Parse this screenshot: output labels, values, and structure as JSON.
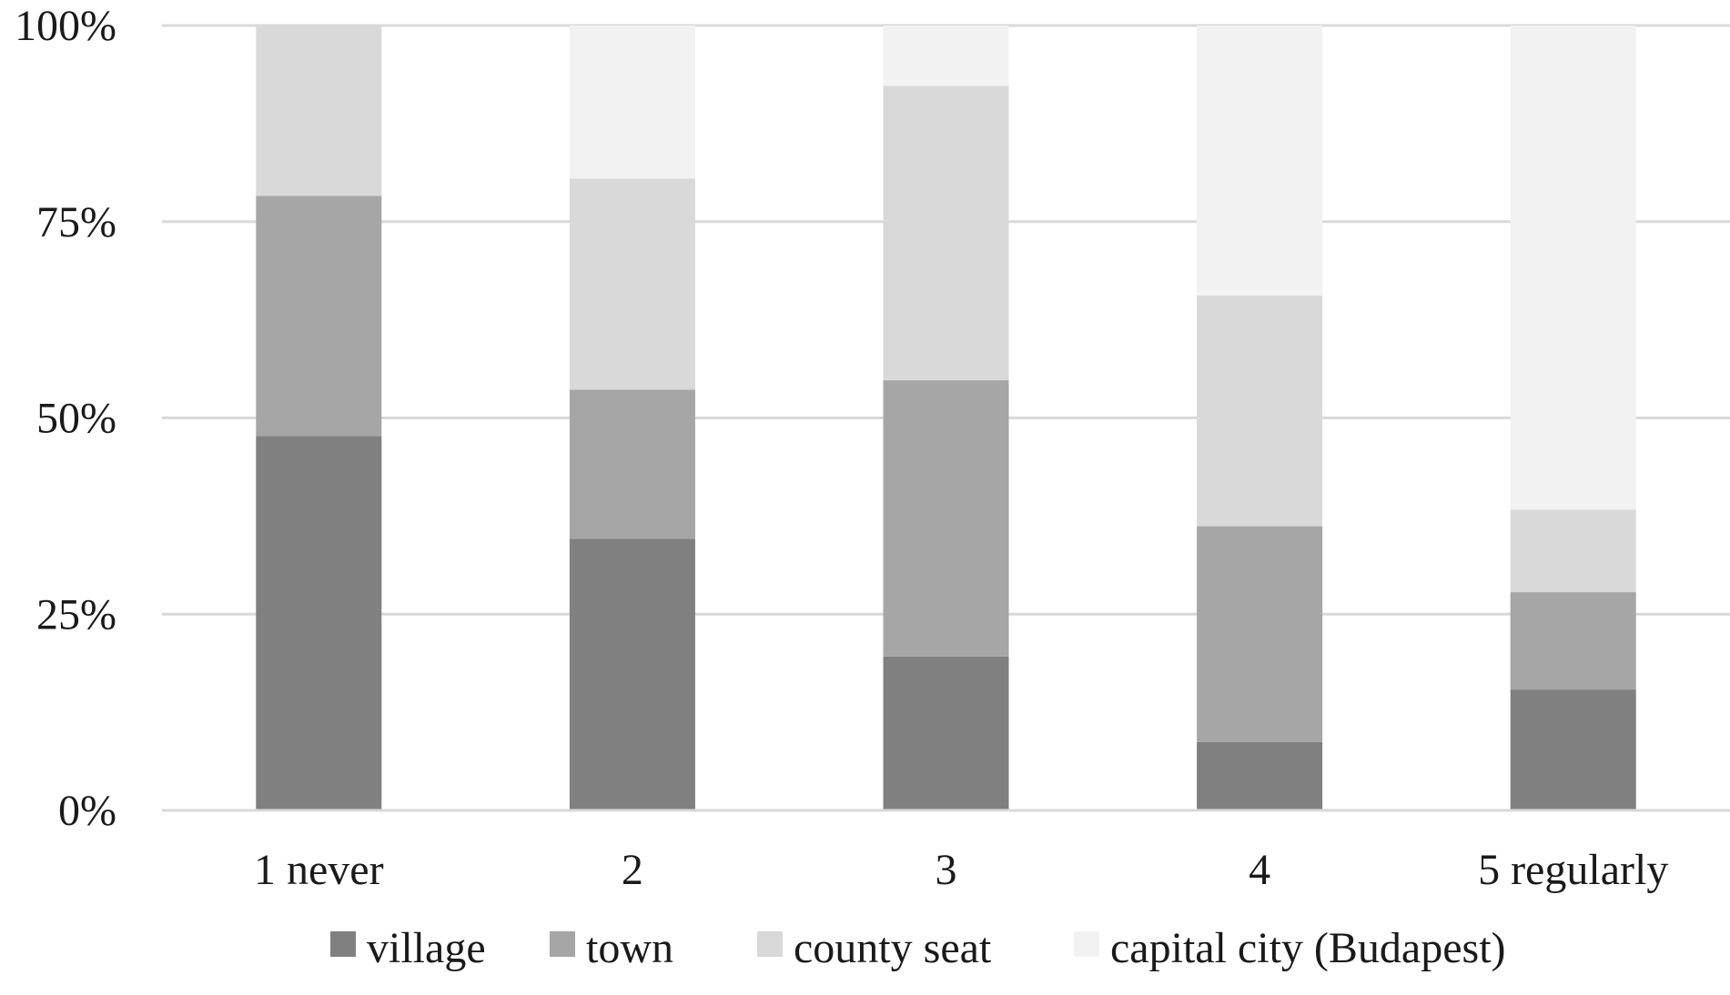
{
  "chart_data": {
    "type": "bar",
    "stacked": true,
    "normalized": true,
    "categories": [
      "1 never",
      "2",
      "3",
      "4",
      "5 regularly"
    ],
    "series": [
      {
        "name": "village",
        "values": [
          47.7,
          34.6,
          19.6,
          8.7,
          15.4
        ],
        "color": "#808080"
      },
      {
        "name": "town",
        "values": [
          30.6,
          19.0,
          35.2,
          27.5,
          12.4
        ],
        "color": "#a6a6a6"
      },
      {
        "name": "county seat",
        "values": [
          21.7,
          26.9,
          37.5,
          29.4,
          10.5
        ],
        "color": "#d9d9d9"
      },
      {
        "name": "capital city (Budapest)",
        "values": [
          0.0,
          19.5,
          7.7,
          34.4,
          61.7
        ],
        "color": "#f2f2f2"
      }
    ],
    "yticks": [
      "0%",
      "25%",
      "50%",
      "75%",
      "100%"
    ],
    "ylim": [
      0,
      100
    ],
    "grid": true,
    "legend_position": "bottom",
    "title": "",
    "xlabel": "",
    "ylabel": ""
  }
}
